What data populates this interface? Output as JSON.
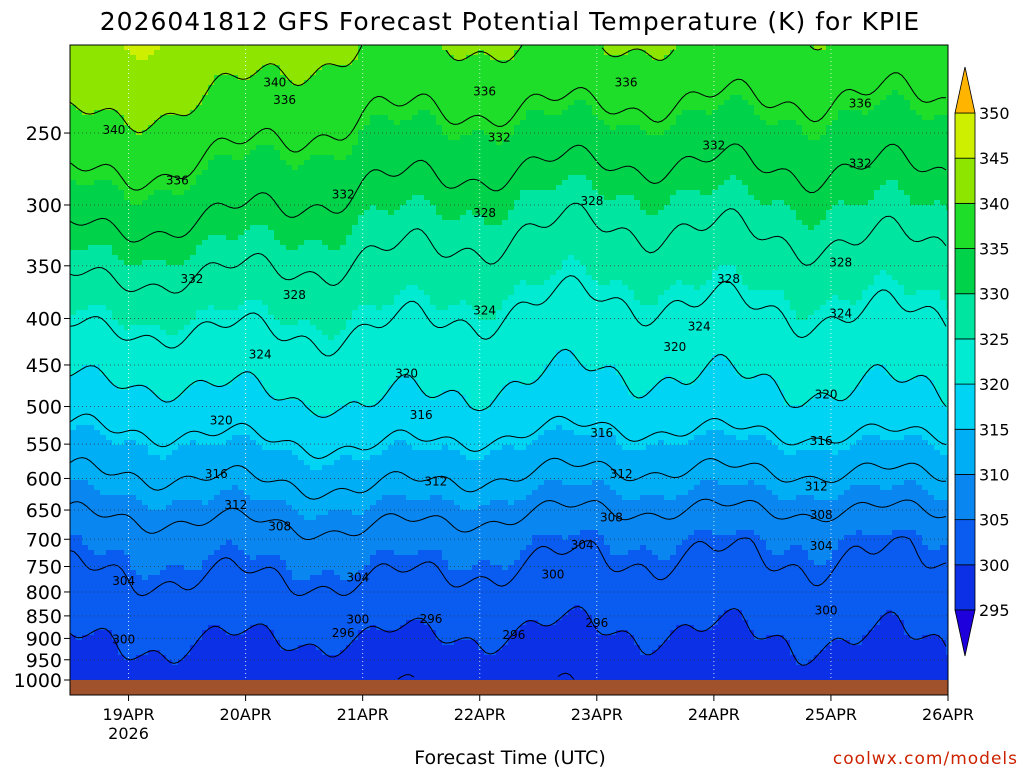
{
  "chart_data": {
    "type": "heatmap",
    "title": "2026041812 GFS Forecast Potential Temperature (K) for KPIE",
    "xlabel": "Forecast Time (UTC)",
    "ylabel": "",
    "x_ticks": [
      "19APR",
      "20APR",
      "21APR",
      "22APR",
      "23APR",
      "24APR",
      "25APR",
      "26APR"
    ],
    "x_year_label": "2026",
    "xlim": [
      "2026-04-18 12Z",
      "2026-04-26 00Z"
    ],
    "y_ticks": [
      250,
      300,
      350,
      400,
      450,
      500,
      550,
      600,
      650,
      700,
      750,
      800,
      850,
      900,
      950,
      1000
    ],
    "ylim": [
      1000,
      200
    ],
    "y_scale": "log-pressure (hPa, inverted)",
    "colorbar": {
      "levels": [
        295,
        300,
        305,
        310,
        315,
        320,
        325,
        330,
        335,
        340,
        345,
        350
      ],
      "colors": [
        "#1e00dc",
        "#0c30e6",
        "#0a5bf0",
        "#0a86f0",
        "#00aef5",
        "#00d4f5",
        "#00ebd2",
        "#00e6a0",
        "#00d24a",
        "#1ede2a",
        "#8ee600",
        "#cef000",
        "#fff000",
        "#ffb400"
      ]
    },
    "contour_levels": [
      296,
      300,
      304,
      308,
      312,
      316,
      320,
      324,
      328,
      332,
      336,
      340
    ],
    "profile_by_day": [
      {
        "time": "19APR",
        "theta_at_1000": 298,
        "theta_at_700": 306,
        "theta_at_500": 318,
        "theta_at_300": 334,
        "theta_at_250": 339
      },
      {
        "time": "21APR",
        "theta_at_1000": 297,
        "theta_at_700": 307,
        "theta_at_500": 320,
        "theta_at_300": 331,
        "theta_at_250": 335
      },
      {
        "time": "23APR",
        "theta_at_1000": 297,
        "theta_at_700": 305,
        "theta_at_500": 318,
        "theta_at_300": 329,
        "theta_at_250": 334
      },
      {
        "time": "25APR",
        "theta_at_1000": 298,
        "theta_at_700": 305,
        "theta_at_500": 319,
        "theta_at_300": 330,
        "theta_at_250": 334
      }
    ],
    "contour_labels": [
      {
        "text": "340",
        "time": "18APR 21Z",
        "p": 248
      },
      {
        "text": "340",
        "time": "20APR 06Z",
        "p": 220
      },
      {
        "text": "336",
        "time": "20APR 08Z",
        "p": 230
      },
      {
        "text": "336",
        "time": "22APR 01Z",
        "p": 225
      },
      {
        "text": "336",
        "time": "23APR 06Z",
        "p": 220
      },
      {
        "text": "336",
        "time": "25APR 06Z",
        "p": 232
      },
      {
        "text": "336",
        "time": "19APR 10Z",
        "p": 282
      },
      {
        "text": "332",
        "time": "22APR 04Z",
        "p": 253
      },
      {
        "text": "332",
        "time": "24APR 00Z",
        "p": 258
      },
      {
        "text": "332",
        "time": "25APR 06Z",
        "p": 270
      },
      {
        "text": "332",
        "time": "20APR 20Z",
        "p": 292
      },
      {
        "text": "328",
        "time": "22APR 01Z",
        "p": 306
      },
      {
        "text": "328",
        "time": "22APR 23Z",
        "p": 297
      },
      {
        "text": "328",
        "time": "25APR 02Z",
        "p": 347
      },
      {
        "text": "328",
        "time": "24APR 03Z",
        "p": 362
      },
      {
        "text": "332",
        "time": "19APR 13Z",
        "p": 362
      },
      {
        "text": "328",
        "time": "20APR 10Z",
        "p": 377
      },
      {
        "text": "324",
        "time": "22APR 01Z",
        "p": 392
      },
      {
        "text": "324",
        "time": "23APR 21Z",
        "p": 408
      },
      {
        "text": "324",
        "time": "25APR 02Z",
        "p": 395
      },
      {
        "text": "324",
        "time": "20APR 03Z",
        "p": 438
      },
      {
        "text": "320",
        "time": "23APR 16Z",
        "p": 430
      },
      {
        "text": "320",
        "time": "21APR 09Z",
        "p": 460
      },
      {
        "text": "320",
        "time": "24APR 23Z",
        "p": 485
      },
      {
        "text": "320",
        "time": "19APR 19Z",
        "p": 518
      },
      {
        "text": "316",
        "time": "21APR 12Z",
        "p": 511
      },
      {
        "text": "316",
        "time": "23APR 01Z",
        "p": 535
      },
      {
        "text": "316",
        "time": "24APR 22Z",
        "p": 546
      },
      {
        "text": "316",
        "time": "19APR 18Z",
        "p": 593
      },
      {
        "text": "312",
        "time": "21APR 15Z",
        "p": 605
      },
      {
        "text": "312",
        "time": "23APR 05Z",
        "p": 593
      },
      {
        "text": "312",
        "time": "24APR 21Z",
        "p": 612
      },
      {
        "text": "312",
        "time": "19APR 22Z",
        "p": 642
      },
      {
        "text": "308",
        "time": "20APR 07Z",
        "p": 678
      },
      {
        "text": "308",
        "time": "23APR 03Z",
        "p": 662
      },
      {
        "text": "308",
        "time": "24APR 22Z",
        "p": 658
      },
      {
        "text": "304",
        "time": "22APR 21Z",
        "p": 710
      },
      {
        "text": "304",
        "time": "24APR 22Z",
        "p": 712
      },
      {
        "text": "304",
        "time": "18APR 23Z",
        "p": 778
      },
      {
        "text": "304",
        "time": "20APR 23Z",
        "p": 771
      },
      {
        "text": "300",
        "time": "22APR 15Z",
        "p": 765
      },
      {
        "text": "300",
        "time": "20APR 23Z",
        "p": 858
      },
      {
        "text": "300",
        "time": "24APR 23Z",
        "p": 838
      },
      {
        "text": "300",
        "time": "18APR 23Z",
        "p": 903
      },
      {
        "text": "296",
        "time": "21APR 14Z",
        "p": 857
      },
      {
        "text": "296",
        "time": "20APR 20Z",
        "p": 888
      },
      {
        "text": "296",
        "time": "22APR 07Z",
        "p": 892
      },
      {
        "text": "296",
        "time": "23APR 00Z",
        "p": 865
      }
    ]
  },
  "credit": "coolwx.com/models"
}
